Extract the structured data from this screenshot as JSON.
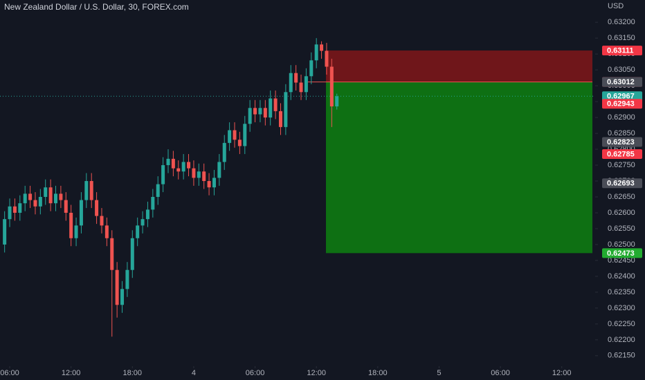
{
  "chart_data": {
    "type": "candlestick",
    "title": "New Zealand Dollar / U.S. Dollar, 30, FOREX.com",
    "y_unit": "USD",
    "up_color": "#26a69a",
    "down_color": "#ef5350",
    "x": [
      -0.5,
      0,
      0.5,
      1,
      1.5,
      2,
      2.5,
      3,
      3.5,
      4,
      4.5,
      5,
      5.5,
      6,
      6.5,
      7,
      7.5,
      8,
      8.5,
      9,
      9.5,
      10,
      10.5,
      11,
      11.5,
      12,
      12.5,
      13,
      13.5,
      14,
      14.5,
      15,
      15.5,
      16,
      16.5,
      17,
      17.5,
      18,
      18.5,
      19,
      19.5,
      20,
      20.5,
      21,
      21.5,
      22,
      22.5,
      23,
      23.5,
      24,
      24.5,
      25,
      25.5,
      26,
      26.5,
      27,
      27.5,
      28,
      28.5,
      29,
      29.5,
      30,
      30.5,
      31,
      31.5,
      32
    ],
    "open": [
      0.625,
      0.6258,
      0.6262,
      0.626,
      0.6263,
      0.6266,
      0.6264,
      0.6262,
      0.6265,
      0.6268,
      0.6263,
      0.6266,
      0.6264,
      0.626,
      0.6252,
      0.6256,
      0.6264,
      0.627,
      0.6264,
      0.6259,
      0.6256,
      0.6252,
      0.6242,
      0.6231,
      0.6236,
      0.6242,
      0.6252,
      0.6256,
      0.6258,
      0.6261,
      0.6265,
      0.6269,
      0.6275,
      0.6277,
      0.6274,
      0.6273,
      0.6276,
      0.6274,
      0.6271,
      0.6273,
      0.627,
      0.6268,
      0.6271,
      0.6276,
      0.6282,
      0.6286,
      0.6283,
      0.6281,
      0.6288,
      0.6293,
      0.6291,
      0.6293,
      0.629,
      0.6296,
      0.6292,
      0.6287,
      0.6298,
      0.6304,
      0.6301,
      0.6298,
      0.6303,
      0.6308,
      0.6313,
      0.6311,
      0.6306,
      0.62935
    ],
    "high": [
      0.62605,
      0.62645,
      0.62645,
      0.62655,
      0.62685,
      0.62685,
      0.62665,
      0.62675,
      0.62705,
      0.62705,
      0.62685,
      0.62685,
      0.62665,
      0.62625,
      0.62585,
      0.62665,
      0.62725,
      0.62725,
      0.62665,
      0.62615,
      0.62585,
      0.62545,
      0.62445,
      0.62385,
      0.62445,
      0.62545,
      0.62585,
      0.62605,
      0.62635,
      0.62675,
      0.62715,
      0.62775,
      0.628,
      0.62795,
      0.62765,
      0.62785,
      0.62785,
      0.62765,
      0.62755,
      0.62755,
      0.62725,
      0.62735,
      0.62785,
      0.62845,
      0.62885,
      0.62885,
      0.62855,
      0.62905,
      0.62955,
      0.62955,
      0.62955,
      0.62955,
      0.62985,
      0.62985,
      0.62945,
      0.63005,
      0.63065,
      0.63065,
      0.63035,
      0.63055,
      0.63105,
      0.6315,
      0.6314,
      0.63135,
      0.63085,
      0.62975
    ],
    "low": [
      0.62475,
      0.62555,
      0.62575,
      0.62575,
      0.62605,
      0.62615,
      0.62595,
      0.62595,
      0.62625,
      0.62605,
      0.62605,
      0.62615,
      0.62575,
      0.62495,
      0.62495,
      0.62535,
      0.62615,
      0.62615,
      0.62565,
      0.62535,
      0.62495,
      0.6221,
      0.6227,
      0.62285,
      0.62335,
      0.62395,
      0.62495,
      0.62535,
      0.62555,
      0.62585,
      0.62625,
      0.62665,
      0.62725,
      0.62715,
      0.62705,
      0.62705,
      0.62715,
      0.62685,
      0.62685,
      0.62675,
      0.62655,
      0.62655,
      0.62685,
      0.62735,
      0.62795,
      0.62805,
      0.62785,
      0.62785,
      0.62855,
      0.62885,
      0.62885,
      0.62875,
      0.62875,
      0.62895,
      0.62845,
      0.62845,
      0.62955,
      0.62985,
      0.62955,
      0.62955,
      0.63005,
      0.63055,
      0.63085,
      0.63035,
      0.6287,
      0.62925
    ],
    "close": [
      0.6258,
      0.6262,
      0.626,
      0.6263,
      0.6266,
      0.6264,
      0.6262,
      0.6265,
      0.6268,
      0.6263,
      0.6266,
      0.6264,
      0.626,
      0.6252,
      0.6256,
      0.6264,
      0.627,
      0.6264,
      0.6259,
      0.6256,
      0.6252,
      0.6242,
      0.6231,
      0.6236,
      0.6242,
      0.6252,
      0.6256,
      0.6258,
      0.6261,
      0.6265,
      0.6269,
      0.6275,
      0.6277,
      0.6274,
      0.6273,
      0.6276,
      0.6274,
      0.6271,
      0.6273,
      0.627,
      0.6268,
      0.6271,
      0.6276,
      0.6282,
      0.6286,
      0.6283,
      0.6281,
      0.6288,
      0.6293,
      0.6291,
      0.6293,
      0.629,
      0.6296,
      0.6292,
      0.6287,
      0.6298,
      0.6304,
      0.6301,
      0.6298,
      0.6303,
      0.6308,
      0.6313,
      0.6311,
      0.6306,
      0.62935,
      0.62967
    ],
    "xlim": [
      -0.95,
      57.27
    ],
    "xticks": [
      {
        "value": 0,
        "label": "06:00"
      },
      {
        "value": 6,
        "label": "12:00"
      },
      {
        "value": 12,
        "label": "18:00"
      },
      {
        "value": 18,
        "label": "4"
      },
      {
        "value": 24,
        "label": "06:00"
      },
      {
        "value": 30,
        "label": "12:00"
      },
      {
        "value": 36,
        "label": "18:00"
      },
      {
        "value": 42,
        "label": "5"
      },
      {
        "value": 48,
        "label": "06:00"
      },
      {
        "value": 54,
        "label": "12:00"
      }
    ],
    "ylim": [
      0.62117,
      0.6327
    ],
    "yticks": [
      {
        "value": 0.6215,
        "label": "0.62150"
      },
      {
        "value": 0.622,
        "label": "0.62200"
      },
      {
        "value": 0.6225,
        "label": "0.62250"
      },
      {
        "value": 0.623,
        "label": "0.62300"
      },
      {
        "value": 0.6235,
        "label": "0.62350"
      },
      {
        "value": 0.624,
        "label": "0.62400"
      },
      {
        "value": 0.6245,
        "label": "0.62450"
      },
      {
        "value": 0.625,
        "label": "0.62500"
      },
      {
        "value": 0.6255,
        "label": "0.62550"
      },
      {
        "value": 0.626,
        "label": "0.62600"
      },
      {
        "value": 0.6265,
        "label": "0.62650"
      },
      {
        "value": 0.627,
        "label": "0.62700"
      },
      {
        "value": 0.6275,
        "label": "0.62750"
      },
      {
        "value": 0.628,
        "label": "0.62800"
      },
      {
        "value": 0.6285,
        "label": "0.62850"
      },
      {
        "value": 0.629,
        "label": "0.62900"
      },
      {
        "value": 0.6295,
        "label": "0.62950"
      },
      {
        "value": 0.63,
        "label": "0.63000"
      },
      {
        "value": 0.6305,
        "label": "0.63050"
      },
      {
        "value": 0.631,
        "label": "0.63100"
      },
      {
        "value": 0.6315,
        "label": "0.63150"
      },
      {
        "value": 0.632,
        "label": "0.63200"
      }
    ],
    "position": {
      "stop": 0.63111,
      "entry": 0.63012,
      "target": 0.62473,
      "stop_color": "#7a1619",
      "target_color": "#0e7a12",
      "entry_color": "#ef5350"
    },
    "last_price": 0.62967,
    "badges": [
      {
        "value": 0.63111,
        "color": "#f23645"
      },
      {
        "value": 0.63012,
        "color": "#f7525f"
      },
      {
        "value": 0.63012,
        "color": "#4a4d57"
      },
      {
        "value": 0.62967,
        "color": "#26a69a"
      },
      {
        "value": 0.62943,
        "color": "#f23645"
      },
      {
        "value": 0.62823,
        "color": "#4a4d57"
      },
      {
        "value": 0.62785,
        "color": "#f23645"
      },
      {
        "value": 0.62693,
        "color": "#4a4d57"
      },
      {
        "value": 0.62473,
        "color": "#22ab30"
      }
    ]
  }
}
